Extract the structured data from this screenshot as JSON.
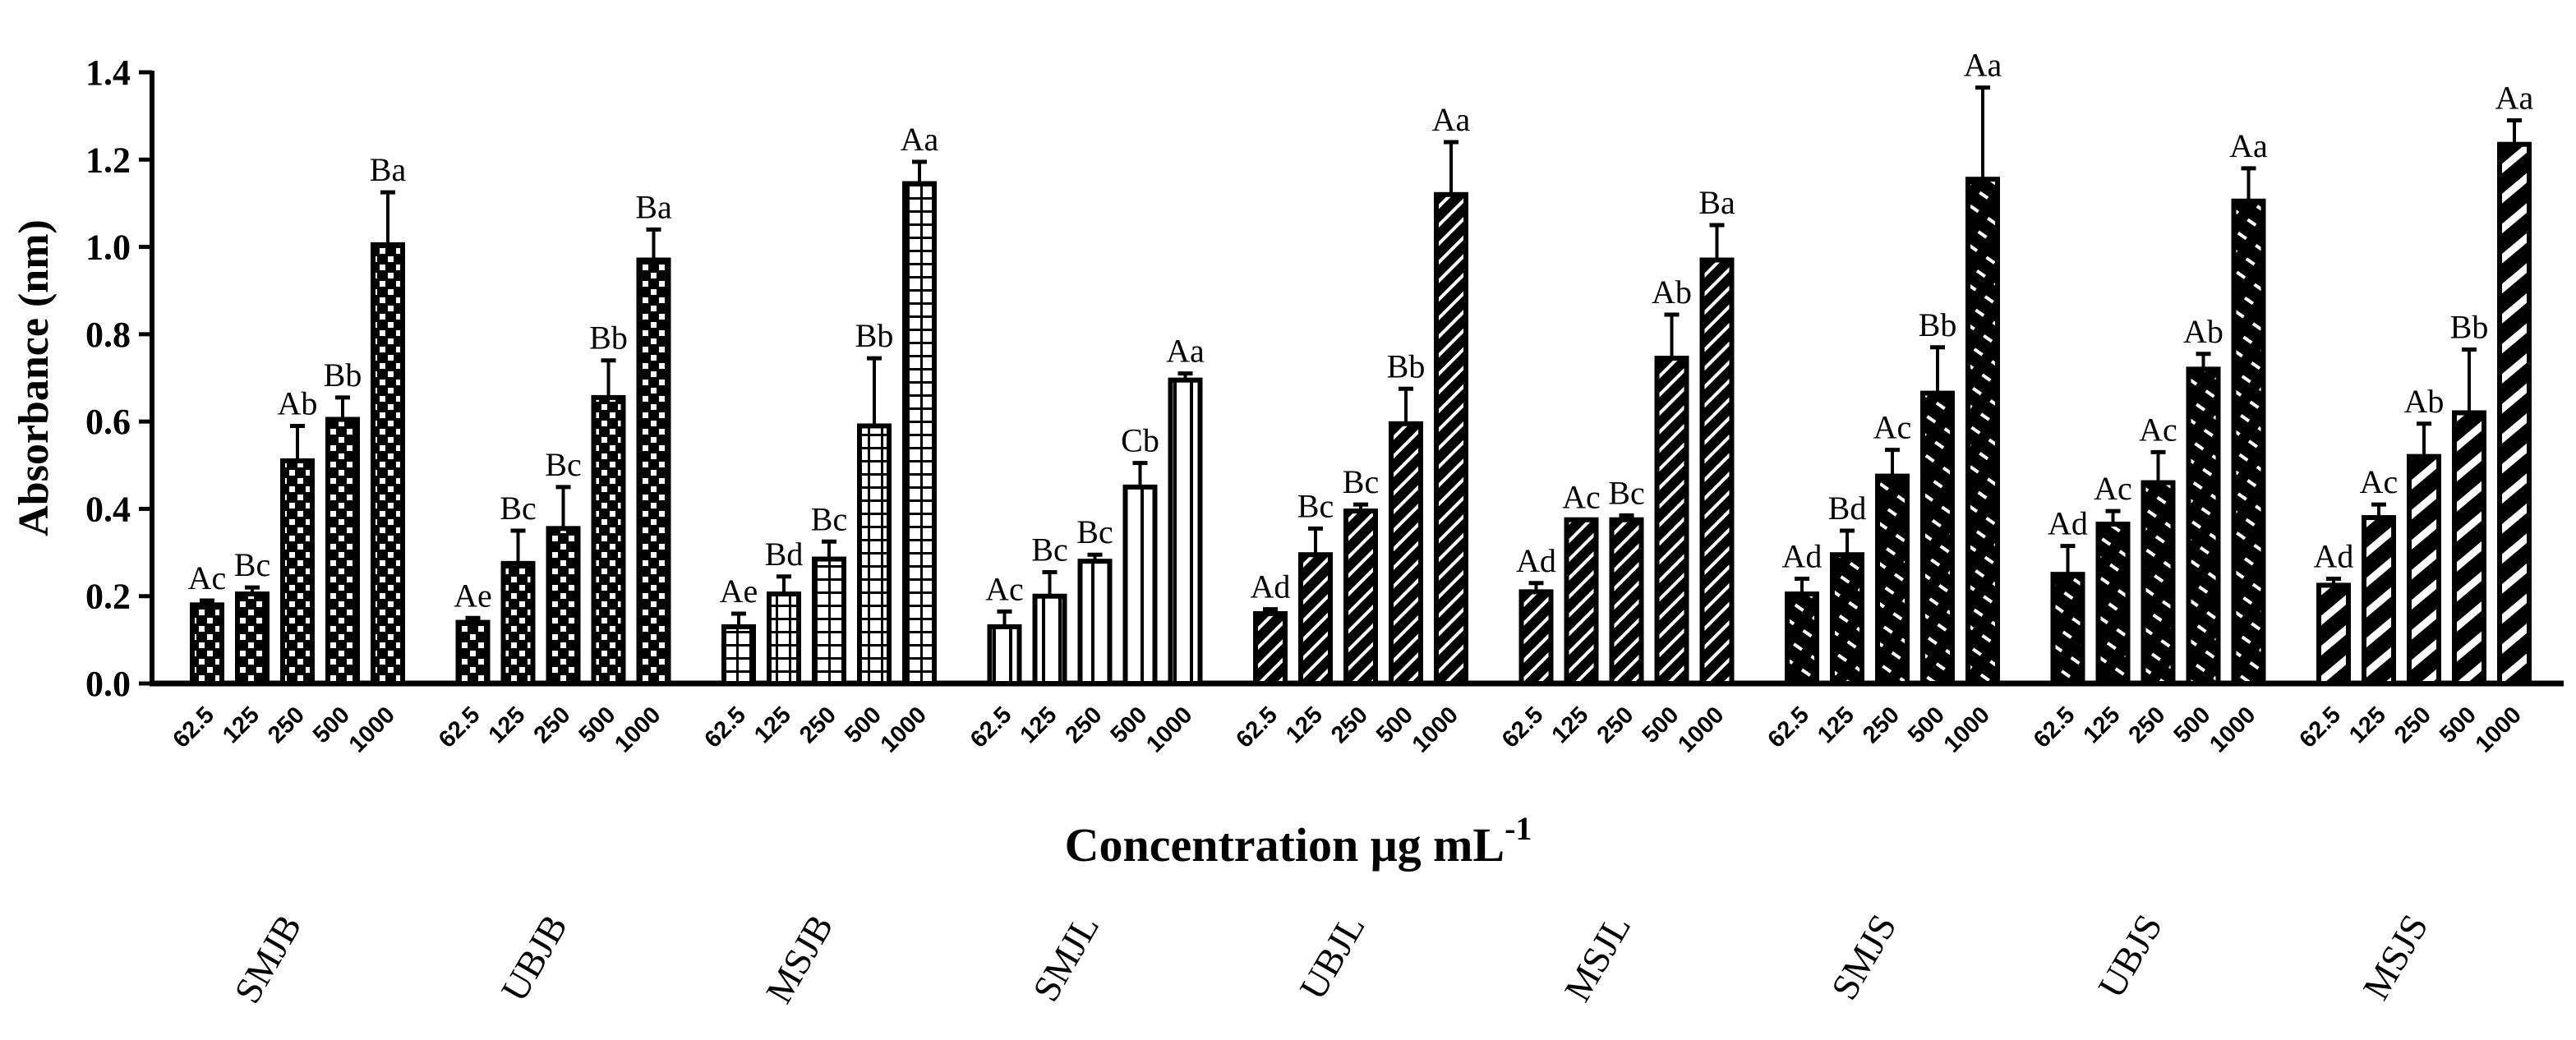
{
  "chart_data": {
    "type": "bar",
    "title": "",
    "ylabel": "Absorbance (nm)",
    "xlabel_main": "Concentration μg mL",
    "xlabel_sup": "-1",
    "ylim": [
      0,
      1.4
    ],
    "yticks": [
      "0.0",
      "0.2",
      "0.4",
      "0.6",
      "0.8",
      "1.0",
      "1.2",
      "1.4"
    ],
    "concentrations": [
      "62.5",
      "125",
      "250",
      "500",
      "1000"
    ],
    "groups": [
      {
        "name": "SMJB",
        "pattern": "checker",
        "values": [
          0.18,
          0.205,
          0.51,
          0.605,
          1.005
        ],
        "errors": [
          0.01,
          0.015,
          0.08,
          0.05,
          0.12
        ],
        "labels": [
          "Ac",
          "Bc",
          "Ab",
          "Bb",
          "Ba"
        ]
      },
      {
        "name": "UBJB",
        "pattern": "checker",
        "values": [
          0.14,
          0.275,
          0.355,
          0.655,
          0.97
        ],
        "errors": [
          0.01,
          0.075,
          0.095,
          0.085,
          0.07
        ],
        "labels": [
          "Ae",
          "Bc",
          "Bc",
          "Bb",
          "Ba"
        ]
      },
      {
        "name": "MSJB",
        "pattern": "grid",
        "values": [
          0.13,
          0.205,
          0.285,
          0.59,
          1.145
        ],
        "errors": [
          0.03,
          0.04,
          0.04,
          0.155,
          0.05
        ],
        "labels": [
          "Ae",
          "Bd",
          "Bc",
          "Bb",
          "Aa"
        ]
      },
      {
        "name": "SMJL",
        "pattern": "vstripe",
        "values": [
          0.13,
          0.2,
          0.28,
          0.45,
          0.695
        ],
        "errors": [
          0.035,
          0.055,
          0.015,
          0.055,
          0.015
        ],
        "labels": [
          "Ac",
          "Bc",
          "Bc",
          "Cb",
          "Aa"
        ]
      },
      {
        "name": "UBJL",
        "pattern": "diagonal",
        "values": [
          0.16,
          0.295,
          0.395,
          0.595,
          1.12
        ],
        "errors": [
          0.01,
          0.06,
          0.015,
          0.08,
          0.12
        ],
        "labels": [
          "Ad",
          "Bc",
          "Bc",
          "Bb",
          "Aa"
        ]
      },
      {
        "name": "MSJL",
        "pattern": "diagonal",
        "values": [
          0.21,
          0.375,
          0.375,
          0.745,
          0.97
        ],
        "errors": [
          0.02,
          0.0,
          0.01,
          0.1,
          0.08
        ],
        "labels": [
          "Ad",
          "Ac",
          "Bc",
          "Ab",
          "Ba"
        ]
      },
      {
        "name": "SMJS",
        "pattern": "dashed",
        "values": [
          0.205,
          0.295,
          0.475,
          0.665,
          1.155
        ],
        "errors": [
          0.035,
          0.055,
          0.06,
          0.105,
          0.21
        ],
        "labels": [
          "Ad",
          "Bd",
          "Ac",
          "Bb",
          "Aa"
        ]
      },
      {
        "name": "UBJS",
        "pattern": "dashed",
        "values": [
          0.25,
          0.365,
          0.46,
          0.72,
          1.105
        ],
        "errors": [
          0.065,
          0.03,
          0.07,
          0.035,
          0.075
        ],
        "labels": [
          "Ad",
          "Ac",
          "Ac",
          "Ab",
          "Aa"
        ]
      },
      {
        "name": "MSJS",
        "pattern": "wide-diagonal",
        "values": [
          0.225,
          0.38,
          0.52,
          0.62,
          1.235
        ],
        "errors": [
          0.015,
          0.03,
          0.075,
          0.145,
          0.055
        ],
        "labels": [
          "Ad",
          "Ac",
          "Ab",
          "Bb",
          "Aa"
        ]
      }
    ],
    "colors": {
      "ink": "#000000",
      "paper": "#ffffff"
    }
  }
}
